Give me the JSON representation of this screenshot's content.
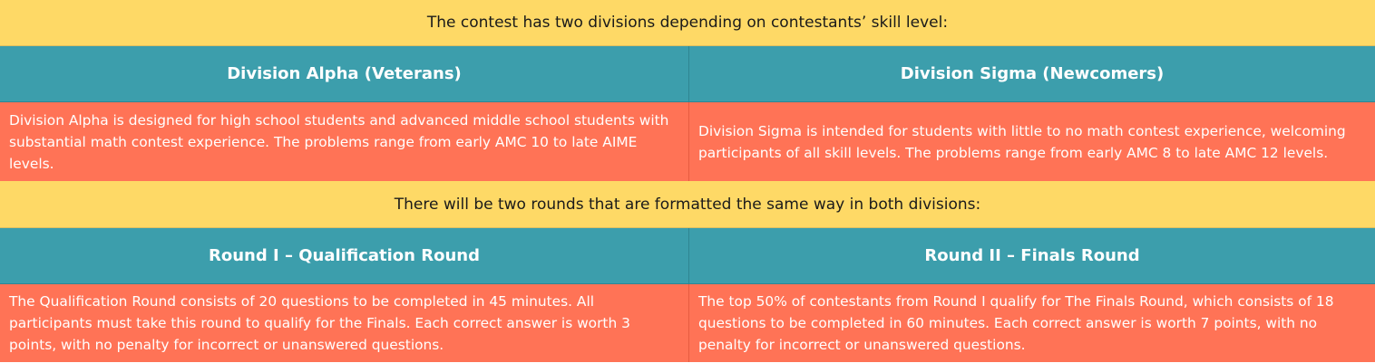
{
  "intro_divisions": "The contest has two divisions depending on contestants’ skill level:",
  "divisions": [
    {
      "title": "Division Alpha (Veterans)",
      "description": "Division Alpha is designed for high school students and advanced middle school students with substantial math contest experience. The problems range from early AMC 10 to late AIME levels."
    },
    {
      "title": "Division Sigma (Newcomers)",
      "description": "Division Sigma is intended for students with little to no math contest experience, welcoming participants of all skill levels. The problems range from early AMC 8 to late AMC 12 levels."
    }
  ],
  "intro_rounds": "There will be two rounds that are formatted the same way in both divisions:",
  "rounds": [
    {
      "title": "Round I – Qualification Round",
      "description": "The Qualification Round consists of 20 questions to be completed in 45 minutes. All participants must take this round to qualify for the Finals. Each correct answer is worth 3 points, with no penalty for incorrect or unanswered questions."
    },
    {
      "title": "Round II – Finals Round",
      "description": "The top 50% of contestants from Round I qualify for The Finals Round, which consists of 18 questions to be completed in 60 minutes. Each correct answer is worth 7 points, with no penalty for incorrect or unanswered questions."
    }
  ],
  "colors": {
    "banner": "#fed966",
    "header": "#3c9eac",
    "body": "#ff7356"
  }
}
